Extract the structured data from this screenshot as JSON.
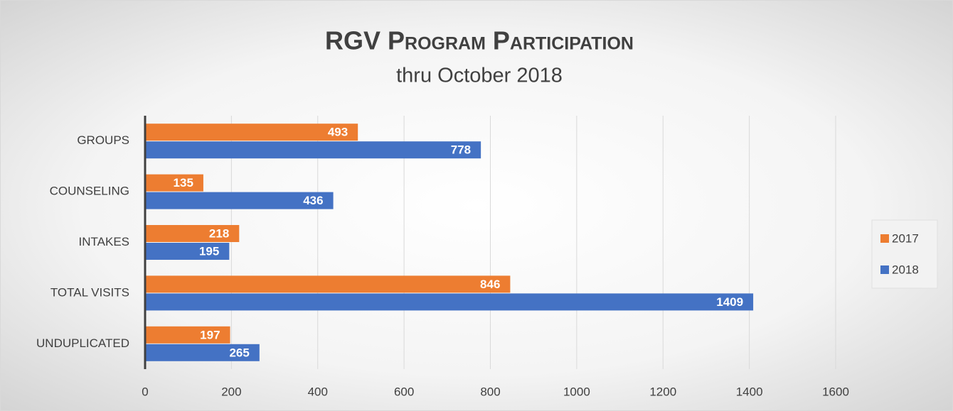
{
  "chart_data": {
    "type": "bar",
    "orientation": "horizontal",
    "title": "RGV Program Participation",
    "subtitle": "thru October 2018",
    "categories": [
      "GROUPS",
      "COUNSELING",
      "INTAKES",
      "TOTAL VISITS",
      "UNDUPLICATED"
    ],
    "series": [
      {
        "name": "2017",
        "color": "#ed7d31",
        "values": [
          493,
          135,
          218,
          846,
          197
        ]
      },
      {
        "name": "2018",
        "color": "#4472c4",
        "values": [
          778,
          436,
          195,
          1409,
          265
        ]
      }
    ],
    "xlim": [
      0,
      1600
    ],
    "xticks": [
      0,
      200,
      400,
      600,
      800,
      1000,
      1200,
      1400,
      1600
    ],
    "grid": true,
    "legend": "right"
  }
}
